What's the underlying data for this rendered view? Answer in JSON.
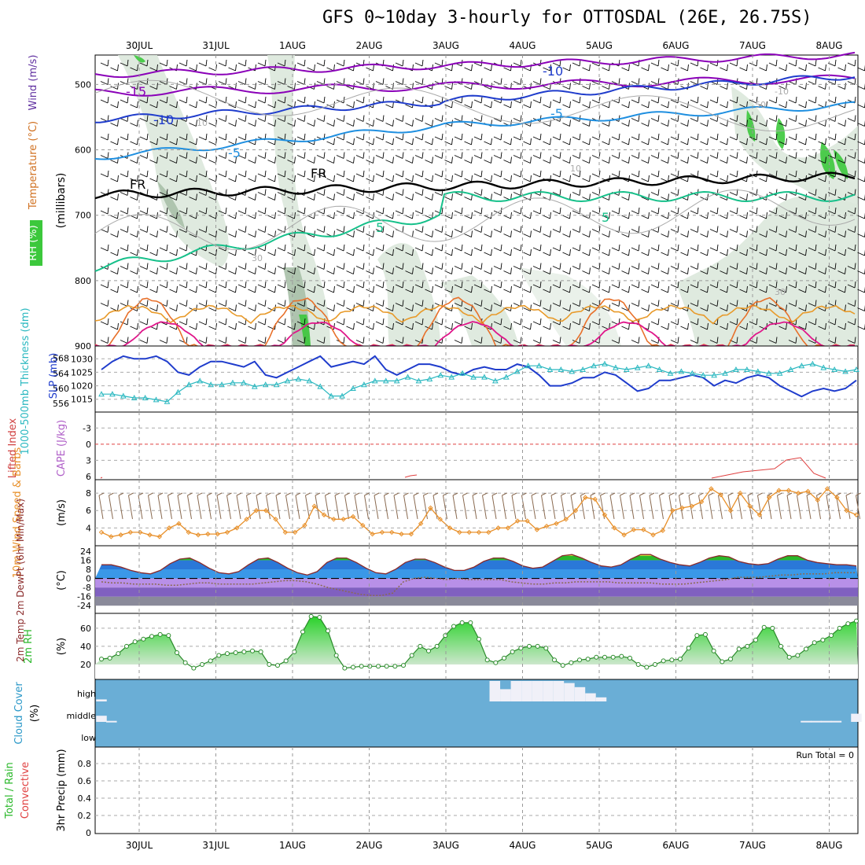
{
  "title": "GFS 0~10day 3-hourly for OTTOSDAL (26E, 26.75S)",
  "days": [
    "30JUL",
    "31JUL",
    "1AUG",
    "2AUG",
    "3AUG",
    "4AUG",
    "5AUG",
    "6AUG",
    "7AUG",
    "8AUG"
  ],
  "run_total": "Run Total = 0",
  "colors": {
    "purple": "#8a00b8",
    "blue": "#1f3ccc",
    "lightblue": "#1f8fe0",
    "teal": "#16c08a",
    "orange": "#e89a2a",
    "orange2": "#e8702a",
    "magenta": "#e0168a",
    "rhgreen": "#3cc83c",
    "cloud": "#6aaed6",
    "slp": "#1f3ccc",
    "thick": "#2ab8c0",
    "wind": "#e8902a",
    "cape": "#b060c8"
  },
  "panels": {
    "upper": {
      "ylabel_parts": [
        "RH (%)",
        "Temperature (°C)",
        "Wind (m/s)"
      ],
      "ylabel2": "(millibars)",
      "yticks": [
        "500",
        "600",
        "700",
        "800",
        "900"
      ],
      "contour_labels": [
        "-15",
        "-10",
        "-10",
        "-5",
        "-5",
        "5",
        "5",
        "FR",
        "FR",
        "-10",
        "30",
        "50",
        "30",
        "10",
        "10"
      ]
    },
    "slp": {
      "ylabel_left": "1000-500mb Thickness (dm)",
      "ylabel_right": "SLP (mb)",
      "left_ticks": [
        "568",
        "564",
        "560",
        "556"
      ],
      "right_ticks": [
        "1030",
        "1025",
        "1020",
        "1015"
      ]
    },
    "li": {
      "ylabel_left": "Lifted Index",
      "ylabel_right": "CAPE (J/kg)",
      "ticks": [
        "-3",
        "0",
        "3",
        "6"
      ]
    },
    "wind10": {
      "ylabel": "10m Wind Speed & Barbs",
      "unit": "(m/s)",
      "ticks": [
        "8",
        "6",
        "4"
      ]
    },
    "temp": {
      "ylabel": "2m Temp 2m DewPt (6hr Min/Max)",
      "unit": "(°C)",
      "ticks": [
        "24",
        "16",
        "8",
        "0",
        "-8",
        "-16",
        "-24"
      ]
    },
    "rh": {
      "ylabel": "2m RH",
      "unit": "(%)",
      "ticks": [
        "60",
        "40",
        "20"
      ]
    },
    "cloud": {
      "ylabel": "Cloud Cover",
      "unit": "(%)",
      "levels": [
        "high",
        "middle",
        "low"
      ]
    },
    "precip": {
      "ylabel_total": "Total / Rain",
      "ylabel_conv": "Convective",
      "ylabel2": "3hr Precip (mm)",
      "ticks": [
        "0.8",
        "0.6",
        "0.4",
        "0.2",
        "0"
      ]
    }
  },
  "chart_data": [
    {
      "type": "line",
      "title": "SLP (mb)",
      "series": [
        {
          "name": "SLP (mb)",
          "x_days_from_30JUL": [
            -0.5,
            -0.375,
            -0.25,
            -0.125,
            0,
            0.125,
            0.25,
            0.375,
            0.5,
            0.625,
            0.75,
            0.875,
            1,
            1.125,
            1.25,
            1.375,
            1.5,
            1.625,
            1.75,
            1.875,
            2,
            2.125,
            2.25,
            2.375,
            2.5,
            2.625,
            2.75,
            2.875,
            3,
            3.125,
            3.25,
            3.375,
            3.5,
            3.625,
            3.75,
            3.875,
            4,
            4.125,
            4.25,
            4.375,
            4.5,
            4.625,
            4.75,
            4.875,
            5,
            5.125,
            5.25,
            5.375,
            5.5,
            5.625,
            5.75,
            5.875,
            6,
            6.125,
            6.25,
            6.375,
            6.5,
            6.625,
            6.75,
            6.875,
            7,
            7.125,
            7.25,
            7.375,
            7.5,
            7.625,
            7.75,
            7.875,
            8,
            8.125,
            8.25
          ],
          "values": [
            1026,
            1029,
            1031,
            1030,
            1030,
            1031,
            1029,
            1025,
            1024,
            1027,
            1029,
            1029,
            1028,
            1027,
            1029,
            1024,
            1023,
            1025,
            1027,
            1029,
            1031,
            1027,
            1028,
            1029,
            1028,
            1031,
            1026,
            1024,
            1026,
            1028,
            1028,
            1027,
            1025,
            1024,
            1026,
            1027,
            1026,
            1026,
            1028,
            1027,
            1024,
            1020,
            1020,
            1021,
            1023,
            1023,
            1025,
            1024,
            1021,
            1018,
            1019,
            1022,
            1022,
            1023,
            1024,
            1023,
            1020,
            1022,
            1021,
            1023,
            1024,
            1023,
            1020,
            1018,
            1016,
            1018,
            1019,
            1018,
            1019,
            1022
          ]
        }
      ]
    },
    {
      "type": "line",
      "title": "1000-500mb Thickness (dm)",
      "series": [
        {
          "name": "1000-500mb Thickness (dm)",
          "values": [
            558.5,
            558.5,
            558,
            557.5,
            557.5,
            557,
            556.5,
            559,
            561,
            562,
            561,
            561,
            561.5,
            561.5,
            560.5,
            561,
            561,
            562,
            562.5,
            562,
            560.5,
            558,
            558,
            560,
            561,
            562,
            562,
            562,
            563,
            562,
            562.5,
            563.5,
            563,
            564,
            563,
            563,
            562,
            563,
            564.5,
            566,
            566,
            565,
            565,
            564.5,
            565,
            566,
            566.5,
            565.5,
            565,
            565.5,
            566,
            565,
            564,
            564.5,
            564,
            563.5,
            563.5,
            564,
            565,
            565,
            564.5,
            564,
            564,
            565,
            566,
            566.5,
            565.5,
            565,
            564.5,
            565
          ]
        }
      ]
    },
    {
      "type": "line",
      "title": "10m Wind Speed & Barbs (m/s)",
      "series": [
        {
          "name": "10m Wind Speed",
          "values": [
            3.5,
            3,
            3.2,
            3.5,
            3.5,
            3.2,
            3,
            4,
            4.5,
            3.5,
            3.2,
            3.3,
            3.3,
            3.5,
            4,
            5,
            6,
            6,
            5,
            3.5,
            3.5,
            4.3,
            6.5,
            5.5,
            5,
            5,
            5.3,
            4.3,
            3.3,
            3.5,
            3.5,
            3.3,
            3.3,
            4.5,
            6.3,
            5,
            4,
            3.5,
            3.5,
            3.5,
            3.5,
            4,
            4,
            4.8,
            4.8,
            3.8,
            4.2,
            4.5,
            5,
            6,
            7.5,
            7.3,
            5.5,
            4,
            3.2,
            3.8,
            3.8,
            3.2,
            3.7,
            6,
            6.3,
            6.5,
            7,
            8.5,
            7.8,
            6,
            8,
            6.5,
            5.5,
            7.5,
            8.3,
            8.3,
            8,
            8.2,
            7.2,
            8.5,
            7.5,
            6,
            5.5
          ]
        }
      ]
    },
    {
      "type": "area",
      "title": "2m Temp (°C)",
      "series": [
        {
          "name": "2m Temp",
          "values": [
            12,
            12,
            10,
            7,
            5,
            4,
            7,
            13,
            17,
            18,
            14,
            9,
            5,
            4,
            6,
            12,
            17,
            18,
            14,
            9,
            5,
            3,
            6,
            14,
            18,
            18,
            14,
            9,
            5,
            4,
            8,
            14,
            17,
            17,
            14,
            10,
            7,
            7,
            10,
            15,
            18,
            18,
            15,
            11,
            9,
            10,
            15,
            20,
            21,
            18,
            14,
            11,
            10,
            12,
            17,
            21,
            21,
            17,
            14,
            12,
            11,
            14,
            18,
            20,
            19,
            15,
            13,
            12,
            13,
            17,
            20,
            20,
            16,
            14,
            13,
            12,
            12,
            11
          ]
        },
        {
          "name": "2m DewPt",
          "values": [
            -3,
            -4,
            -4,
            -5,
            -5,
            -5,
            -6,
            -6,
            -5,
            -4,
            -4,
            -5,
            -5,
            -5,
            -5,
            -4,
            -3,
            -2,
            -2,
            -3,
            -5,
            -8,
            -10,
            -12,
            -14,
            -15,
            -15,
            -13,
            -3,
            0,
            1,
            0,
            -1,
            0,
            -1,
            -1,
            -1,
            -1,
            -3,
            -4,
            -5,
            -5,
            -4,
            -4,
            -3,
            -3,
            -3,
            -3,
            -4,
            -4,
            -4,
            -4,
            -5,
            -5,
            -5,
            -4,
            -3,
            -2,
            -1,
            1,
            1,
            1,
            2,
            3,
            3,
            4,
            4,
            4,
            5,
            5,
            5
          ]
        }
      ]
    },
    {
      "type": "area",
      "title": "2m RH (%)",
      "series": [
        {
          "name": "2m RH",
          "values": [
            26,
            27,
            32,
            40,
            45,
            48,
            51,
            53,
            52,
            33,
            22,
            16,
            20,
            24,
            30,
            32,
            33,
            34,
            35,
            34,
            20,
            19,
            24,
            34,
            56,
            73,
            72,
            57,
            30,
            16,
            17,
            18,
            18,
            18,
            18,
            18,
            19,
            30,
            40,
            35,
            40,
            52,
            62,
            66,
            66,
            48,
            25,
            22,
            27,
            34,
            38,
            40,
            40,
            38,
            25,
            19,
            22,
            25,
            26,
            28,
            28,
            28,
            29,
            27,
            20,
            17,
            20,
            24,
            25,
            26,
            38,
            52,
            53,
            35,
            23,
            26,
            37,
            40,
            47,
            61,
            60,
            40,
            28,
            30,
            37,
            44,
            47,
            52,
            60,
            65,
            68
          ]
        }
      ]
    },
    {
      "type": "bar",
      "title": "Cloud Cover (%)",
      "series": [
        {
          "name": "high",
          "values": [
            10,
            0,
            0,
            0,
            0,
            0,
            0,
            0,
            0,
            0,
            0,
            0,
            0,
            0,
            0,
            0,
            0,
            0,
            0,
            0,
            0,
            0,
            0,
            0,
            0,
            0,
            0,
            0,
            0,
            0,
            0,
            0,
            0,
            0,
            0,
            0,
            0,
            100,
            60,
            100,
            100,
            100,
            100,
            100,
            90,
            70,
            40,
            20,
            0,
            0,
            0,
            0,
            0,
            0,
            0,
            0,
            0,
            0,
            0,
            0,
            0,
            0,
            0,
            0,
            0,
            0,
            0,
            0,
            0,
            0,
            0,
            0
          ]
        },
        {
          "name": "middle",
          "values": [
            30,
            5,
            0,
            0,
            0,
            0,
            0,
            0,
            0,
            0,
            0,
            0,
            0,
            0,
            0,
            0,
            0,
            0,
            0,
            0,
            0,
            0,
            0,
            0,
            0,
            0,
            0,
            0,
            0,
            0,
            0,
            0,
            0,
            0,
            0,
            0,
            0,
            0,
            0,
            0,
            0,
            0,
            0,
            0,
            0,
            0,
            0,
            0,
            0,
            0,
            0,
            0,
            0,
            0,
            0,
            0,
            0,
            0,
            0,
            0,
            0,
            0,
            0,
            0,
            0,
            0,
            0,
            0,
            0,
            0,
            5,
            5,
            5,
            5,
            0,
            40
          ]
        }
      ]
    },
    {
      "type": "bar",
      "title": "3hr Precip (mm)",
      "series": [
        {
          "name": "Total / Rain",
          "values": []
        },
        {
          "name": "Convective",
          "values": []
        }
      ]
    }
  ]
}
